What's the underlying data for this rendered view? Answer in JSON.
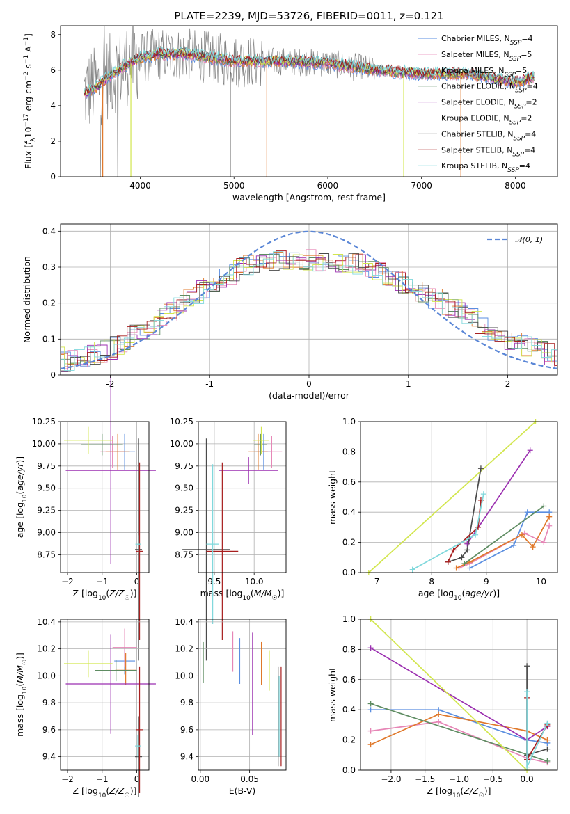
{
  "colors": {
    "Chabrier MILES": "#5a8ee0",
    "Salpeter MILES": "#e686b6",
    "Kroupa MILES": "#e0782a",
    "Chabrier ELODIE": "#5e8c62",
    "Salpeter ELODIE": "#9b2fb0",
    "Kroupa ELODIE": "#d2e64e",
    "Chabrier STELIB": "#4a4a4a",
    "Salpeter STELIB": "#a81f1f",
    "Kroupa STELIB": "#7fd8dc",
    "gaussian": "#5a86d6",
    "raw_spectrum": "#808080"
  },
  "chart_data": [
    {
      "type": "line",
      "title": "PLATE=2239, MJD=53726, FIBERID=0011, z=0.121",
      "xlabel": "wavelength [Angstrom, rest frame]",
      "ylabel": "Flux [f_λ10^-17 erg cm^-2 s^-1 A^-1]",
      "xlim": [
        3150,
        8450
      ],
      "ylim": [
        0,
        8.5
      ],
      "xticks": [
        4000,
        5000,
        6000,
        7000,
        8000
      ],
      "yticks": [
        0,
        2,
        4,
        6,
        8
      ],
      "legend_position": "top-right",
      "series": [
        {
          "name": "Chabrier MILES",
          "nssp": "4"
        },
        {
          "name": "Salpeter MILES",
          "nssp": "5"
        },
        {
          "name": "Kroupa MILES",
          "nssp": "5"
        },
        {
          "name": "Chabrier ELODIE",
          "nssp": "4"
        },
        {
          "name": "Salpeter ELODIE",
          "nssp": "2"
        },
        {
          "name": "Kroupa ELODIE",
          "nssp": "2"
        },
        {
          "name": "Chabrier STELIB",
          "nssp": "4"
        },
        {
          "name": "Salpeter STELIB",
          "nssp": "4"
        },
        {
          "name": "Kroupa STELIB",
          "nssp": "4"
        }
      ],
      "continuum": {
        "x": [
          3400,
          3550,
          3700,
          3850,
          4000,
          4200,
          4500,
          5000,
          5500,
          6000,
          6500,
          7000,
          7500,
          8000,
          8200
        ],
        "y": [
          4.7,
          5.1,
          5.8,
          6.3,
          6.7,
          6.9,
          6.9,
          6.5,
          6.5,
          6.4,
          6.0,
          5.8,
          5.8,
          5.3,
          5.6
        ]
      }
    },
    {
      "type": "line",
      "xlabel": "(data-model)/error",
      "ylabel": "Normed distribution",
      "xlim": [
        -2.5,
        2.5
      ],
      "ylim": [
        0,
        0.42
      ],
      "xticks": [
        -2,
        -1,
        0,
        1,
        2
      ],
      "yticks": [
        0.0,
        0.1,
        0.2,
        0.3,
        0.4
      ],
      "legend_position": "top-right",
      "gaussian": {
        "name": "𝒩(0, 1)",
        "mean": 0,
        "sigma": 1
      },
      "hist_base": {
        "x": [
          -2.5,
          -2,
          -1.5,
          -1,
          -0.5,
          0,
          0.5,
          1,
          1.5,
          2,
          2.5
        ],
        "y": [
          0.035,
          0.07,
          0.15,
          0.25,
          0.32,
          0.32,
          0.31,
          0.25,
          0.18,
          0.1,
          0.05
        ]
      }
    },
    {
      "type": "scatter",
      "xlabel": "Z [log10(Z/Z☉)]",
      "ylabel": "age  [log10(age/yr)]",
      "xlim": [
        -2.2,
        0.35
      ],
      "ylim": [
        8.55,
        10.25
      ],
      "xticks": [
        "−2",
        "−1",
        "0"
      ],
      "xtick_values": [
        -2,
        -1,
        0
      ],
      "yticks": [
        "8.75",
        "9.00",
        "9.25",
        "9.50",
        "9.75",
        "10.00",
        "10.25"
      ],
      "ytick_values": [
        8.75,
        9.0,
        9.25,
        9.5,
        9.75,
        10.0,
        10.25
      ],
      "points": [
        {
          "s": "Chabrier MILES",
          "x": -0.35,
          "y": 9.91,
          "xe": 0.3,
          "ye": 0.2
        },
        {
          "s": "Salpeter MILES",
          "x": -0.7,
          "y": 9.91,
          "xe": 0.35,
          "ye": 0.18
        },
        {
          "s": "Kroupa MILES",
          "x": -0.55,
          "y": 9.91,
          "xe": 0.35,
          "ye": 0.2
        },
        {
          "s": "Chabrier ELODIE",
          "x": -1.0,
          "y": 9.99,
          "xe": 0.6,
          "ye": 0.12
        },
        {
          "s": "Salpeter ELODIE",
          "x": -0.75,
          "y": 9.7,
          "xe": 1.3,
          "ye": 1.05
        },
        {
          "s": "Kroupa ELODIE",
          "x": -1.4,
          "y": 10.04,
          "xe": 0.7,
          "ye": 0.15
        },
        {
          "s": "Chabrier STELIB",
          "x": 0.05,
          "y": 8.81,
          "xe": 0.1,
          "ye": 1.25
        },
        {
          "s": "Salpeter STELIB",
          "x": 0.08,
          "y": 8.79,
          "xe": 0.1,
          "ye": 1.0
        },
        {
          "s": "Kroupa STELIB",
          "x": 0.04,
          "y": 8.87,
          "xe": 0.08,
          "ye": 0.1
        }
      ]
    },
    {
      "type": "scatter",
      "xlabel": "mass [log10(M/M☉)]",
      "ylabel": "",
      "xlim": [
        9.3,
        10.4
      ],
      "ylim": [
        8.55,
        10.25
      ],
      "xticks": [
        "9.5",
        "10.0"
      ],
      "xtick_values": [
        9.5,
        10.0
      ],
      "yticks": [
        "8.75",
        "9.00",
        "9.25",
        "9.50",
        "9.75",
        "10.00",
        "10.25"
      ],
      "ytick_values": [
        8.75,
        9.0,
        9.25,
        9.5,
        9.75,
        10.0,
        10.25
      ],
      "points": [
        {
          "s": "Chabrier MILES",
          "x": 10.12,
          "y": 9.91,
          "xe": 0.1,
          "ye": 0.2
        },
        {
          "s": "Salpeter MILES",
          "x": 10.22,
          "y": 9.91,
          "xe": 0.13,
          "ye": 0.18
        },
        {
          "s": "Kroupa MILES",
          "x": 10.05,
          "y": 9.91,
          "xe": 0.12,
          "ye": 0.2
        },
        {
          "s": "Chabrier ELODIE",
          "x": 10.08,
          "y": 9.99,
          "xe": 0.08,
          "ye": 0.12
        },
        {
          "s": "Salpeter ELODIE",
          "x": 9.93,
          "y": 9.7,
          "xe": 0.37,
          "ye": 0.15
        },
        {
          "s": "Kroupa ELODIE",
          "x": 10.09,
          "y": 10.04,
          "xe": 0.1,
          "ye": 0.15
        },
        {
          "s": "Chabrier STELIB",
          "x": 9.4,
          "y": 8.81,
          "xe": 0.3,
          "ye": 1.25
        },
        {
          "s": "Salpeter STELIB",
          "x": 9.6,
          "y": 8.79,
          "xe": 0.2,
          "ye": 1.0
        },
        {
          "s": "Kroupa STELIB",
          "x": 9.48,
          "y": 8.87,
          "xe": 0.08,
          "ye": 0.9
        }
      ]
    },
    {
      "type": "line",
      "xlabel": "age  [log10(age/yr)]",
      "ylabel": "mass weight",
      "xlim": [
        6.7,
        10.3
      ],
      "ylim": [
        0,
        1.0
      ],
      "xticks": [
        "7",
        "8",
        "9",
        "10"
      ],
      "xtick_values": [
        7,
        8,
        9,
        10
      ],
      "yticks": [
        "0.0",
        "0.2",
        "0.4",
        "0.6",
        "0.8",
        "1.0"
      ],
      "ytick_values": [
        0,
        0.2,
        0.4,
        0.6,
        0.8,
        1.0
      ],
      "series": [
        {
          "s": "Chabrier MILES",
          "x": [
            8.7,
            9.5,
            9.75,
            10.15
          ],
          "y": [
            0.03,
            0.18,
            0.4,
            0.4
          ]
        },
        {
          "s": "Salpeter MILES",
          "x": [
            8.5,
            8.7,
            9.7,
            10.05,
            10.15
          ],
          "y": [
            0.03,
            0.06,
            0.26,
            0.2,
            0.31
          ]
        },
        {
          "s": "Kroupa MILES",
          "x": [
            8.45,
            8.7,
            9.65,
            9.85,
            10.15
          ],
          "y": [
            0.03,
            0.07,
            0.25,
            0.17,
            0.37
          ]
        },
        {
          "s": "Chabrier ELODIE",
          "x": [
            8.6,
            10.05
          ],
          "y": [
            0.06,
            0.44
          ]
        },
        {
          "s": "Salpeter ELODIE",
          "x": [
            8.65,
            9.8
          ],
          "y": [
            0.19,
            0.81
          ]
        },
        {
          "s": "Kroupa ELODIE",
          "x": [
            6.85,
            9.9
          ],
          "y": [
            0.0,
            1.0
          ]
        },
        {
          "s": "Chabrier STELIB",
          "x": [
            8.3,
            8.55,
            8.65,
            8.9
          ],
          "y": [
            0.07,
            0.1,
            0.15,
            0.69
          ]
        },
        {
          "s": "Salpeter STELIB",
          "x": [
            8.3,
            8.4,
            8.85,
            8.9
          ],
          "y": [
            0.07,
            0.15,
            0.3,
            0.48
          ]
        },
        {
          "s": "Kroupa STELIB",
          "x": [
            7.65,
            8.8,
            8.95
          ],
          "y": [
            0.02,
            0.25,
            0.52
          ]
        }
      ]
    },
    {
      "type": "scatter",
      "xlabel": "Z [log10(Z/Z☉)]",
      "ylabel": "mass [log10(M/M☉)]",
      "xlim": [
        -2.2,
        0.35
      ],
      "ylim": [
        9.3,
        10.42
      ],
      "xticks": [
        "−2",
        "−1",
        "0"
      ],
      "xtick_values": [
        -2,
        -1,
        0
      ],
      "yticks": [
        "9.4",
        "9.6",
        "9.8",
        "10.0",
        "10.2",
        "10.4"
      ],
      "ytick_values": [
        9.4,
        9.6,
        9.8,
        10.0,
        10.2,
        10.4
      ],
      "points": [
        {
          "s": "Chabrier MILES",
          "x": -0.35,
          "y": 10.11,
          "xe": 0.3,
          "ye": 0.1
        },
        {
          "s": "Salpeter MILES",
          "x": -0.35,
          "y": 10.21,
          "xe": 0.35,
          "ye": 0.14
        },
        {
          "s": "Kroupa MILES",
          "x": -0.32,
          "y": 10.05,
          "xe": 0.3,
          "ye": 0.12
        },
        {
          "s": "Chabrier ELODIE",
          "x": -0.6,
          "y": 10.04,
          "xe": 0.6,
          "ye": 0.08
        },
        {
          "s": "Salpeter ELODIE",
          "x": -0.75,
          "y": 9.94,
          "xe": 1.3,
          "ye": 0.37
        },
        {
          "s": "Kroupa ELODIE",
          "x": -1.4,
          "y": 10.09,
          "xe": 0.7,
          "ye": 0.1
        },
        {
          "s": "Chabrier STELIB",
          "x": 0.05,
          "y": 9.4,
          "xe": 0.1,
          "ye": 0.3
        },
        {
          "s": "Salpeter STELIB",
          "x": 0.08,
          "y": 9.6,
          "xe": 0.1,
          "ye": 0.47
        },
        {
          "s": "Kroupa STELIB",
          "x": 0.03,
          "y": 9.48,
          "xe": 0.08,
          "ye": 0.08
        }
      ]
    },
    {
      "type": "scatter",
      "xlabel": "E(B-V)",
      "ylabel": "",
      "xlim": [
        -0.002,
        0.087
      ],
      "ylim": [
        9.3,
        10.42
      ],
      "xticks": [
        "0.00",
        "0.05"
      ],
      "xtick_values": [
        0.0,
        0.05
      ],
      "yticks": [
        "9.4",
        "9.6",
        "9.8",
        "10.0",
        "10.2",
        "10.4"
      ],
      "ytick_values": [
        9.4,
        9.6,
        9.8,
        10.0,
        10.2,
        10.4
      ],
      "points": [
        {
          "s": "Chabrier MILES",
          "x": 0.04,
          "y": 10.11,
          "ye": 0.17
        },
        {
          "s": "Salpeter MILES",
          "x": 0.033,
          "y": 10.18,
          "ye": 0.15
        },
        {
          "s": "Kroupa MILES",
          "x": 0.062,
          "y": 10.09,
          "ye": 0.16
        },
        {
          "s": "Chabrier ELODIE",
          "x": 0.003,
          "y": 10.1,
          "ye": 0.15
        },
        {
          "s": "Salpeter ELODIE",
          "x": 0.053,
          "y": 9.94,
          "ye": 0.38
        },
        {
          "s": "Kroupa ELODIE",
          "x": 0.07,
          "y": 10.04,
          "ye": 0.15
        },
        {
          "s": "Chabrier STELIB",
          "x": 0.079,
          "y": 9.7,
          "ye": 0.37
        },
        {
          "s": "Salpeter STELIB",
          "x": 0.082,
          "y": 9.7,
          "ye": 0.37
        },
        {
          "s": "Kroupa STELIB",
          "x": 0.08,
          "y": 9.7,
          "ye": 0.3
        }
      ]
    },
    {
      "type": "line",
      "xlabel": "Z [log10(Z/Z☉)]",
      "ylabel": "mass weight",
      "xlim": [
        -2.45,
        0.45
      ],
      "ylim": [
        0,
        1.0
      ],
      "xticks": [
        "−2.0",
        "−1.5",
        "−1.0",
        "−0.5",
        "0.0"
      ],
      "xtick_values": [
        -2.0,
        -1.5,
        -1.0,
        -0.5,
        0.0
      ],
      "yticks": [
        "0.0",
        "0.2",
        "0.4",
        "0.6",
        "0.8",
        "1.0"
      ],
      "ytick_values": [
        0,
        0.2,
        0.4,
        0.6,
        0.8,
        1.0
      ],
      "series": [
        {
          "s": "Chabrier MILES",
          "x": [
            -2.3,
            -1.3,
            0.0,
            0.3
          ],
          "y": [
            0.4,
            0.4,
            0.2,
            0.18
          ]
        },
        {
          "s": "Salpeter MILES",
          "x": [
            -2.3,
            -1.3,
            0.0,
            0.3
          ],
          "y": [
            0.26,
            0.32,
            0.08,
            0.05
          ]
        },
        {
          "s": "Kroupa MILES",
          "x": [
            -2.3,
            -1.3,
            0.0,
            0.3
          ],
          "y": [
            0.17,
            0.37,
            0.26,
            0.2
          ]
        },
        {
          "s": "Chabrier ELODIE",
          "x": [
            -2.3,
            0.3
          ],
          "y": [
            0.44,
            0.06
          ]
        },
        {
          "s": "Salpeter ELODIE",
          "x": [
            -2.3,
            0.0,
            0.3
          ],
          "y": [
            0.81,
            0.2,
            0.29
          ]
        },
        {
          "s": "Kroupa ELODIE",
          "x": [
            -2.3,
            0.0
          ],
          "y": [
            1.0,
            0.0
          ]
        },
        {
          "s": "Chabrier STELIB",
          "x": [
            0.0,
            0.0,
            0.0,
            0.3
          ],
          "y": [
            0.69,
            0.07,
            0.1,
            0.14
          ]
        },
        {
          "s": "Salpeter STELIB",
          "x": [
            0.0,
            0.0,
            0.3
          ],
          "y": [
            0.48,
            0.07,
            0.3
          ]
        },
        {
          "s": "Kroupa STELIB",
          "x": [
            0.0,
            0.0,
            0.3
          ],
          "y": [
            0.52,
            0.02,
            0.31
          ]
        }
      ]
    }
  ]
}
